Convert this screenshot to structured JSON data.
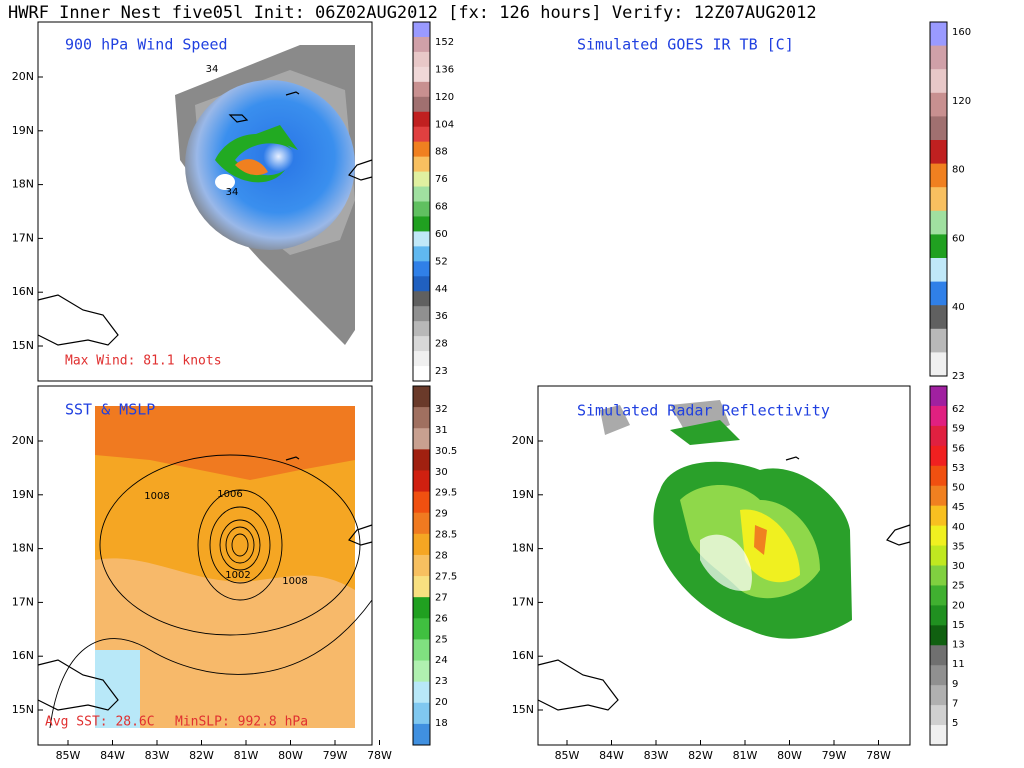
{
  "header": {
    "title": "HWRF Inner Nest five05l Init: 06Z02AUG2012 [fx: 126 hours] Verify: 12Z07AUG2012"
  },
  "panels": [
    {
      "title": "900 hPa Wind Speed",
      "annotations": [
        "Max Wind:  81.1 knots"
      ],
      "contour_labels": [
        34,
        34
      ],
      "yticks": [
        "20N",
        "19N",
        "18N",
        "17N",
        "16N",
        "15N"
      ],
      "colorbar": [
        152,
        136,
        120,
        104,
        88,
        76,
        68,
        60,
        52,
        44,
        36,
        28,
        23
      ]
    },
    {
      "title": "Simulated GOES IR TB [C]",
      "colorbar": [
        160,
        120,
        80,
        60,
        40,
        23
      ]
    },
    {
      "title": "SST & MSLP",
      "annotations": [
        "Avg SST: 28.6C",
        "MinSLP: 992.8 hPa"
      ],
      "contour_labels": [
        1008,
        1006,
        1002,
        1008
      ],
      "yticks": [
        "20N",
        "19N",
        "18N",
        "17N",
        "16N",
        "15N"
      ],
      "xticks": [
        "85W",
        "84W",
        "83W",
        "82W",
        "81W",
        "80W",
        "79W",
        "78W"
      ],
      "colorbar": [
        32,
        31,
        30.5,
        30,
        29.5,
        29,
        28.5,
        28,
        27.5,
        27,
        26,
        25,
        24,
        23,
        20,
        18
      ]
    },
    {
      "title": "Simulated Radar Reflectivity",
      "yticks": [
        "20N",
        "19N",
        "18N",
        "17N",
        "16N",
        "15N"
      ],
      "xticks": [
        "85W",
        "84W",
        "83W",
        "82W",
        "81W",
        "80W",
        "79W",
        "78W"
      ],
      "colorbar": [
        62,
        59,
        56,
        53,
        50,
        45,
        40,
        35,
        30,
        25,
        20,
        15,
        13,
        11,
        9,
        7,
        5
      ]
    }
  ]
}
